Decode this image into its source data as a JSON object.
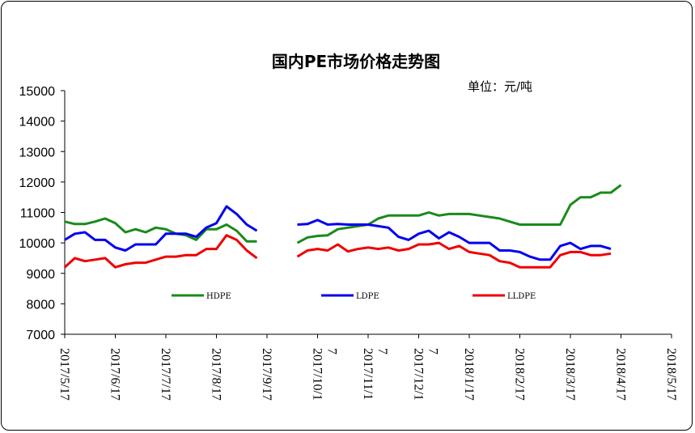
{
  "chart_data": {
    "type": "line",
    "title": "国内PE市场价格走势图",
    "unit_label": "单位：元/吨",
    "ylim": [
      7000,
      15000
    ],
    "y_ticks": [
      "15000",
      "14000",
      "13000",
      "12000",
      "11000",
      "10000",
      "9000",
      "8000",
      "7000"
    ],
    "x_tick_labels": [
      "2017/5/17",
      "2017/6/17",
      "2017/7/17",
      "2017/8/17",
      "2017/9/17",
      "2017/10/17",
      "2017/11/17",
      "2017/12/17",
      "2018/1/17",
      "2018/2/17",
      "2018/3/17",
      "2018/4/17",
      "2018/5/17"
    ],
    "x_tick_lines": [
      [
        "2017/5/17"
      ],
      [
        "2017/6/17"
      ],
      [
        "2017/7/17"
      ],
      [
        "2017/8/17"
      ],
      [
        "2017/9/17"
      ],
      [
        "2017/10/1",
        "7"
      ],
      [
        "2017/11/1",
        "7"
      ],
      [
        "2017/12/1",
        "7"
      ],
      [
        "2018/1/17"
      ],
      [
        "2018/2/17"
      ],
      [
        "2018/3/17"
      ],
      [
        "2018/4/17"
      ],
      [
        "2018/5/17"
      ]
    ],
    "x_count": 61,
    "gap_after_index": 22,
    "grid": false,
    "legend_position": "bottom-inside",
    "series": [
      {
        "name": "HDPE",
        "color": "#1a8a1a",
        "values": [
          10700,
          10620,
          10620,
          10700,
          10800,
          10650,
          10350,
          10450,
          10350,
          10500,
          10450,
          10300,
          10250,
          10100,
          10450,
          10450,
          10600,
          10400,
          10050,
          10050,
          null,
          null,
          null,
          10000,
          10180,
          10230,
          10250,
          10450,
          10500,
          10550,
          10600,
          10800,
          10900,
          10900,
          10900,
          10900,
          11000,
          10900,
          10950,
          10950,
          10950,
          10900,
          10850,
          10800,
          10700,
          10600,
          10600,
          10600,
          10600,
          10600,
          11250,
          11500,
          11500,
          11650,
          11650,
          11900
        ]
      },
      {
        "name": "LDPE",
        "color": "#0000ee",
        "values": [
          10100,
          10300,
          10350,
          10100,
          10100,
          9850,
          9750,
          9950,
          9950,
          9950,
          10300,
          10300,
          10300,
          10200,
          10500,
          10650,
          11200,
          10950,
          10600,
          10400,
          null,
          null,
          null,
          10600,
          10620,
          10750,
          10600,
          10620,
          10600,
          10600,
          10600,
          10550,
          10500,
          10200,
          10100,
          10300,
          10400,
          10150,
          10350,
          10200,
          10000,
          10000,
          10000,
          9750,
          9750,
          9700,
          9550,
          9450,
          9450,
          9900,
          10000,
          9800,
          9900,
          9900,
          9800
        ]
      },
      {
        "name": "LLDPE",
        "color": "#ee0000",
        "values": [
          9200,
          9500,
          9400,
          9450,
          9500,
          9200,
          9300,
          9350,
          9350,
          9450,
          9550,
          9550,
          9600,
          9600,
          9800,
          9800,
          10250,
          10100,
          9750,
          9500,
          null,
          null,
          null,
          9550,
          9750,
          9800,
          9750,
          9950,
          9720,
          9800,
          9850,
          9800,
          9850,
          9750,
          9800,
          9950,
          9950,
          10000,
          9800,
          9900,
          9700,
          9650,
          9600,
          9400,
          9350,
          9200,
          9200,
          9200,
          9200,
          9600,
          9700,
          9700,
          9600,
          9600,
          9650
        ]
      }
    ]
  }
}
